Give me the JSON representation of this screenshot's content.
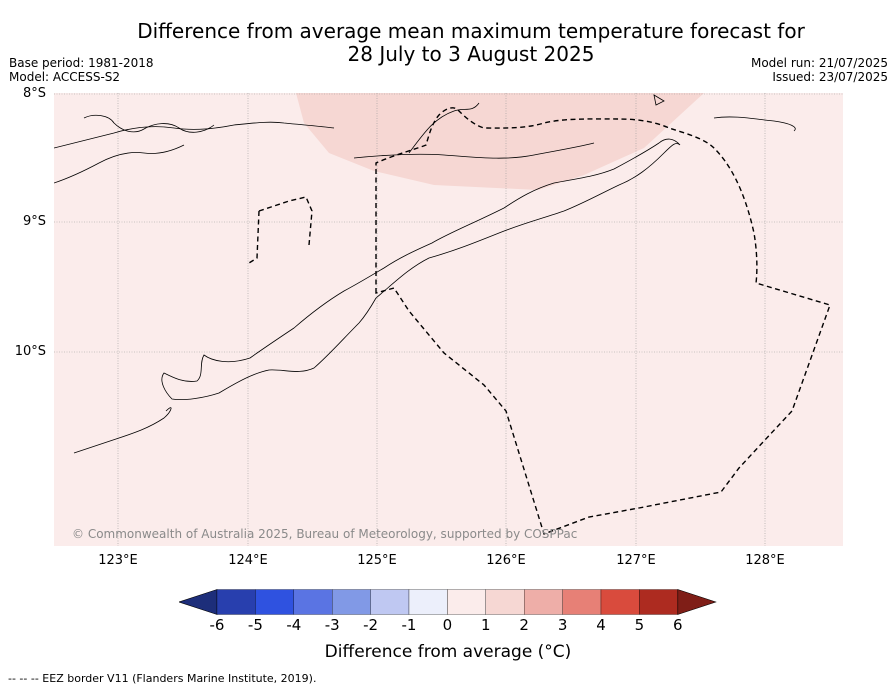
{
  "title_line1": "Difference from average mean maximum temperature forecast for",
  "title_line2": "28 July to 3 August 2025",
  "base_period": "Base period: 1981-2018",
  "model": "Model: ACCESS-S2",
  "model_run": "Model run: 21/07/2025",
  "issued": "Issued: 23/07/2025",
  "lat_labels": [
    "8°S",
    "9°S",
    "10°S"
  ],
  "lon_labels": [
    "123°E",
    "124°E",
    "125°E",
    "126°E",
    "127°E",
    "128°E"
  ],
  "credit": "© Commonwealth of Australia 2025, Bureau of Meteorology, supported by COSPPac",
  "colorbar": {
    "ticks": [
      "-6",
      "-5",
      "-4",
      "-3",
      "-2",
      "-1",
      "0",
      "1",
      "2",
      "3",
      "4",
      "5",
      "6"
    ],
    "colors": [
      "#1d2e7a",
      "#283fae",
      "#2f52e0",
      "#5a74e3",
      "#8199e6",
      "#bfc8f2",
      "#eceffb",
      "#fbeceb",
      "#f6d7d3",
      "#eeaea8",
      "#e78076",
      "#d94b3d",
      "#ad2b20",
      "#7f1e17"
    ],
    "label": "Difference from average (°C)"
  },
  "map_fill": {
    "base": "#fbeceb",
    "warm_patch": "#f6d7d3"
  },
  "footnote": "--  --  -- EEZ border V11 (Flanders Marine Institute, 2019)."
}
